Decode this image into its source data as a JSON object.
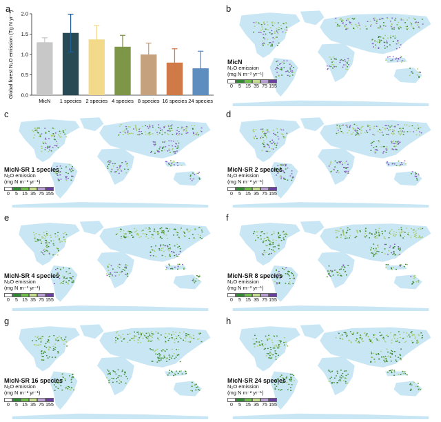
{
  "panels": {
    "a": {
      "label": "a"
    },
    "b": {
      "label": "b",
      "title": "MicN"
    },
    "c": {
      "label": "c",
      "title": "MicN-SR 1 species"
    },
    "d": {
      "label": "d",
      "title": "MicN-SR 2 species"
    },
    "e": {
      "label": "e",
      "title": "MicN-SR 4 species"
    },
    "f": {
      "label": "f",
      "title": "MicN-SR 8 species"
    },
    "g": {
      "label": "g",
      "title": "MicN-SR 16 species"
    },
    "h": {
      "label": "h",
      "title": "MicN-SR 24 species"
    }
  },
  "legend": {
    "line1": "N₂O emission",
    "line2": "(mg N m⁻² yr⁻¹)",
    "ticks": [
      "0",
      "5",
      "15",
      "35",
      "75",
      "155"
    ],
    "colors": [
      "#ffffff",
      "#2f8a32",
      "#6fbf4a",
      "#c5dc8f",
      "#b89fd4",
      "#6a3fa0"
    ]
  },
  "map_colors": {
    "ocean_land_base": "#c9e6f5",
    "green_dark": "#3b8a2e",
    "green_light": "#a9cf6a",
    "purple": "#8a5bbf"
  },
  "chart_data": {
    "type": "bar",
    "categories": [
      "MicN",
      "1 species",
      "2 species",
      "4 species",
      "8 species",
      "16 species",
      "24 species"
    ],
    "values": [
      1.3,
      1.53,
      1.37,
      1.19,
      1.0,
      0.8,
      0.66
    ],
    "error_low": [
      1.2,
      1.06,
      1.04,
      0.91,
      0.73,
      0.47,
      0.25
    ],
    "error_high": [
      1.41,
      1.99,
      1.71,
      1.47,
      1.28,
      1.14,
      1.08
    ],
    "colors": [
      "#c8c8c8",
      "#274a55",
      "#f3d98a",
      "#7d9648",
      "#c5a27d",
      "#cf7a47",
      "#5e8dc0"
    ],
    "ylabel": "Global forest N₂O emission (Tg N yr⁻¹)",
    "ylim": [
      0,
      2
    ],
    "yticks": [
      "0.0",
      "0.5",
      "1.0",
      "1.5",
      "2.0"
    ]
  }
}
